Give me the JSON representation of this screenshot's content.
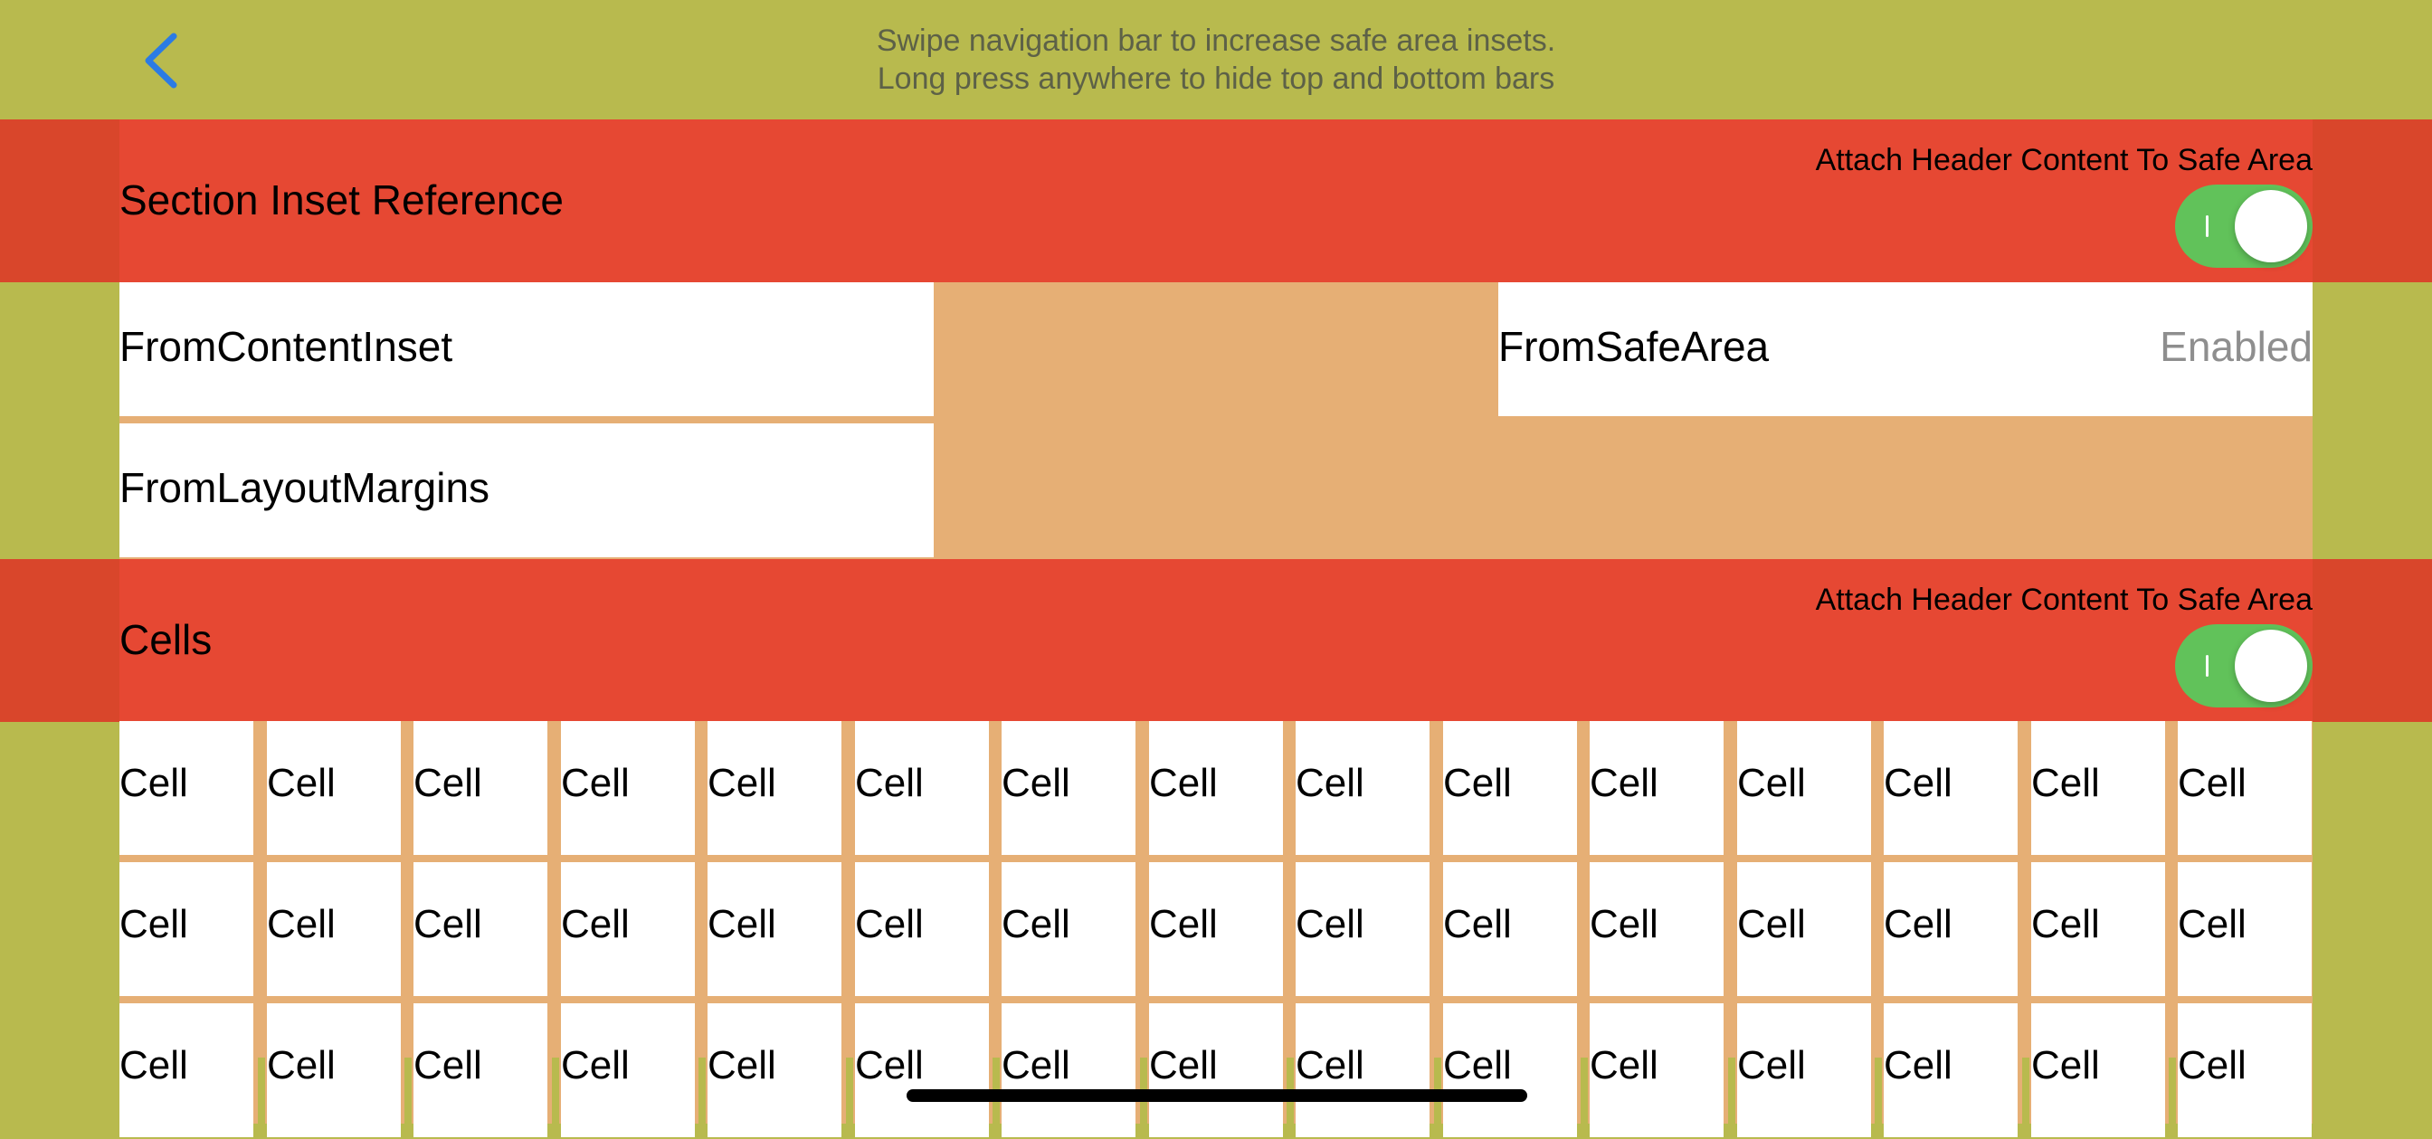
{
  "nav": {
    "hint_line1": "Swipe navigation bar to increase safe area insets.",
    "hint_line2": "Long press anywhere to hide top and bottom bars",
    "back_icon": "chevron-left-icon",
    "back_color": "#2B7BE4"
  },
  "sections": [
    {
      "title": "Section Inset Reference",
      "attach_label": "Attach Header Content To Safe Area",
      "toggle_on": true
    },
    {
      "title": "Cells",
      "attach_label": "Attach Header Content To Safe Area",
      "toggle_on": true
    }
  ],
  "inset_options": [
    {
      "label": "FromContentInset",
      "value": ""
    },
    {
      "label": "FromSafeArea",
      "value": "Enabled"
    },
    {
      "label": "FromLayoutMargins",
      "value": ""
    }
  ],
  "cells": {
    "label": "Cell",
    "rows": 3,
    "columns": 15
  },
  "colors": {
    "nav_background": "#B8BA4E",
    "header_background": "#E64833",
    "section_background": "#E6AF75",
    "cell_background": "#FFFFFF",
    "toggle_on": "#61C25A"
  }
}
